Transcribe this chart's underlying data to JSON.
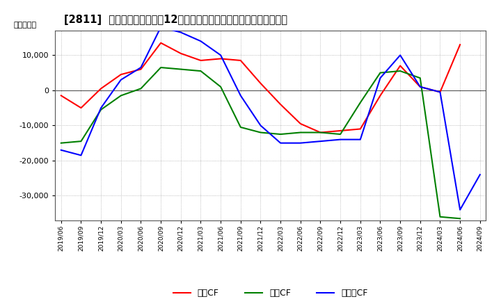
{
  "title": "[2811]  キャッシュフローの12か月移動合計の対前年同期増減額の推移",
  "ylabel": "（百万円）",
  "ylim": [
    -37000,
    17000
  ],
  "yticks": [
    -30000,
    -20000,
    -10000,
    0,
    10000
  ],
  "legend_labels": [
    "営業CF",
    "投資CF",
    "フリーCF"
  ],
  "line_colors": [
    "#ff0000",
    "#008000",
    "#0000ff"
  ],
  "background_color": "#ffffff",
  "grid_color": "#aaaaaa",
  "dates": [
    "2019/06",
    "2019/09",
    "2019/12",
    "2020/03",
    "2020/06",
    "2020/09",
    "2020/12",
    "2021/03",
    "2021/06",
    "2021/09",
    "2021/12",
    "2022/03",
    "2022/06",
    "2022/09",
    "2022/12",
    "2023/03",
    "2023/06",
    "2023/09",
    "2023/12",
    "2024/03",
    "2024/06",
    "2024/09"
  ],
  "operating_cf": [
    -1500,
    -5000,
    500,
    4500,
    6000,
    13500,
    10500,
    8500,
    9000,
    8500,
    2000,
    -4000,
    -9500,
    -12000,
    -11500,
    -11000,
    -1500,
    7000,
    1000,
    -500,
    13000,
    null
  ],
  "investing_cf": [
    -15000,
    -14500,
    -5500,
    -1500,
    500,
    6500,
    6000,
    5500,
    1000,
    -10500,
    -12000,
    -12500,
    -12000,
    -12000,
    -12500,
    -3500,
    5000,
    5500,
    3500,
    -36000,
    -36500,
    null
  ],
  "free_cf": [
    -17000,
    -18500,
    -5000,
    3000,
    6500,
    18000,
    16500,
    14000,
    10000,
    -1500,
    -10000,
    -15000,
    -15000,
    -14500,
    -14000,
    -14000,
    3500,
    10000,
    1000,
    -500,
    -34000,
    -24000
  ]
}
